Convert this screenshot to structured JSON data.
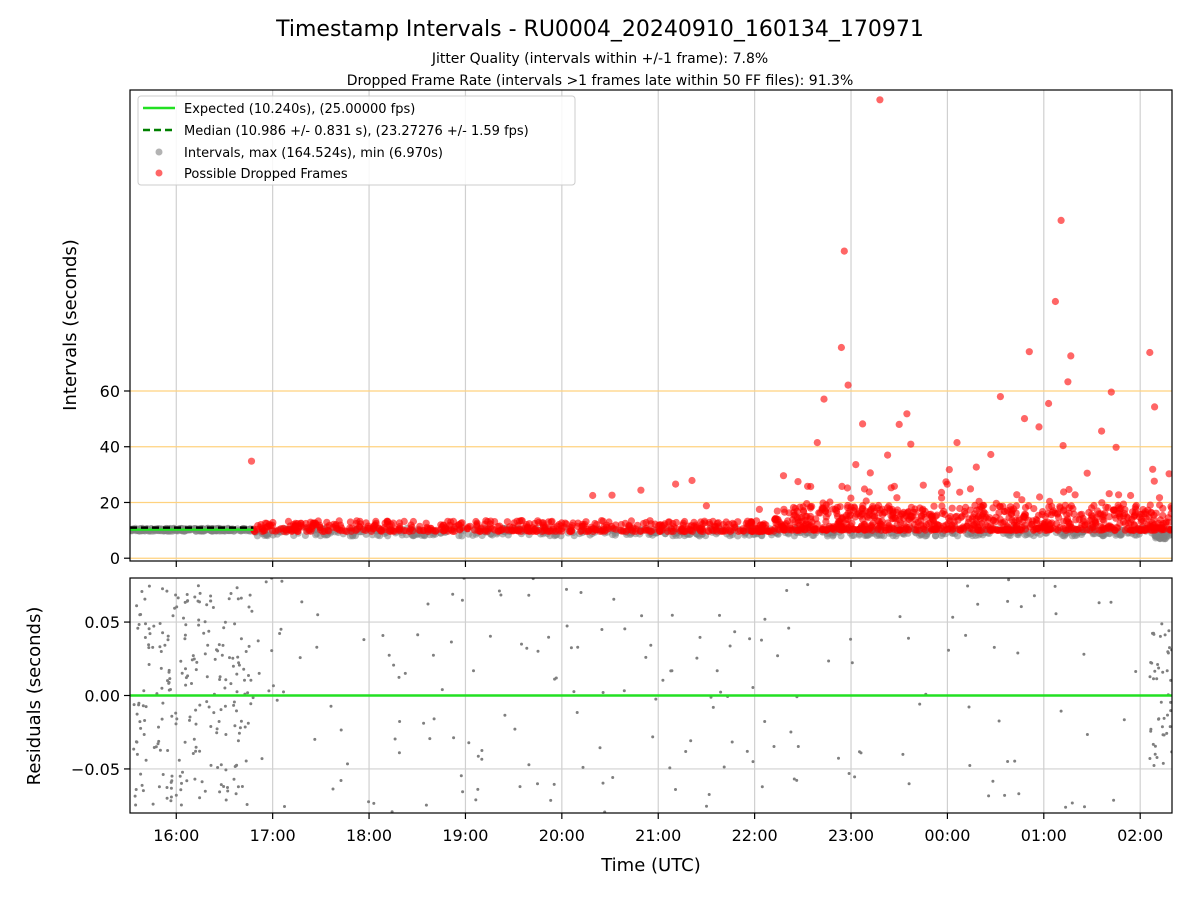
{
  "chart_data": {
    "type": "scatter",
    "title": "Timestamp Intervals - RU0004_20240910_160134_170971",
    "subtitles": [
      "Jitter Quality (intervals within +/-1 frame): 7.8%",
      "Dropped Frame Rate (intervals >1 frames late within 50 FF files): 91.3%"
    ],
    "x_ticks": [
      "16:00",
      "17:00",
      "18:00",
      "19:00",
      "20:00",
      "21:00",
      "22:00",
      "23:00",
      "00:00",
      "01:00",
      "02:00"
    ],
    "xlabel": "Time (UTC)",
    "xlim_hours": [
      15.52,
      26.33
    ],
    "top": {
      "ylabel": "Intervals (seconds)",
      "ylim": [
        -1,
        168
      ],
      "y_ticks": [
        0,
        20,
        40,
        60
      ],
      "threshold_lines": [
        0,
        20,
        40,
        60
      ],
      "threshold_color": "#ffd27f",
      "expected_value": 10.24,
      "median_value": 10.986,
      "legend_position": "upper-left",
      "legend": [
        {
          "label": "Expected (10.240s), (25.00000 fps)",
          "marker": "solid-line",
          "color": "#22e022"
        },
        {
          "label": "Median (10.986 +/- 0.831 s), (23.27276 +/- 1.59 fps)",
          "marker": "dashed-line",
          "color": "#008000"
        },
        {
          "label": "Intervals, max (164.524s), min (6.970s)",
          "marker": "dot",
          "color": "#808080"
        },
        {
          "label": "Possible Dropped Frames",
          "marker": "dot",
          "color": "#ff0000"
        }
      ],
      "dropped_outliers": [
        [
          16.78,
          34.8
        ],
        [
          20.32,
          22.5
        ],
        [
          20.52,
          22.6
        ],
        [
          20.82,
          24.4
        ],
        [
          21.18,
          26.6
        ],
        [
          21.35,
          27.9
        ],
        [
          21.5,
          18.8
        ],
        [
          22.05,
          17.5
        ],
        [
          22.3,
          29.6
        ],
        [
          22.45,
          27.5
        ],
        [
          22.55,
          25.8
        ],
        [
          22.65,
          41.5
        ],
        [
          22.72,
          57.1
        ],
        [
          22.9,
          75.6
        ],
        [
          22.93,
          110.2
        ],
        [
          22.97,
          62.1
        ],
        [
          23.05,
          33.6
        ],
        [
          23.12,
          48.2
        ],
        [
          23.2,
          30.6
        ],
        [
          23.3,
          164.5
        ],
        [
          23.38,
          37.0
        ],
        [
          23.45,
          25.8
        ],
        [
          23.5,
          48.0
        ],
        [
          23.58,
          51.8
        ],
        [
          23.62,
          40.9
        ],
        [
          23.75,
          26.2
        ],
        [
          24.02,
          31.8
        ],
        [
          24.1,
          41.5
        ],
        [
          24.3,
          32.7
        ],
        [
          24.45,
          37.2
        ],
        [
          24.55,
          58.0
        ],
        [
          24.72,
          22.8
        ],
        [
          24.8,
          50.1
        ],
        [
          24.85,
          74.1
        ],
        [
          24.95,
          47.1
        ],
        [
          25.05,
          55.5
        ],
        [
          25.12,
          92.1
        ],
        [
          25.18,
          121.2
        ],
        [
          25.2,
          40.4
        ],
        [
          25.25,
          63.3
        ],
        [
          25.28,
          72.6
        ],
        [
          25.45,
          30.5
        ],
        [
          25.6,
          45.6
        ],
        [
          25.7,
          59.6
        ],
        [
          25.75,
          39.8
        ],
        [
          25.9,
          22.5
        ],
        [
          26.1,
          73.8
        ],
        [
          26.13,
          31.9
        ],
        [
          26.15,
          54.3
        ],
        [
          26.2,
          21.7
        ],
        [
          26.3,
          30.3
        ]
      ],
      "dropped_clusters": [
        {
          "hours": [
            16.8,
            22.2
          ],
          "ymin": 9.6,
          "ymax": 13.5,
          "n": 520
        },
        {
          "hours": [
            22.2,
            26.33
          ],
          "ymin": 10.0,
          "ymax": 19.0,
          "n": 700
        },
        {
          "hours": [
            22.4,
            26.33
          ],
          "ymin": 15.0,
          "ymax": 28.0,
          "n": 90
        }
      ],
      "interval_clusters": [
        {
          "hours": [
            15.52,
            16.8
          ],
          "ymin": 9.7,
          "ymax": 10.7,
          "n": 260
        },
        {
          "hours": [
            16.8,
            26.33
          ],
          "ymin": 8.0,
          "ymax": 10.8,
          "n": 600
        },
        {
          "hours": [
            26.15,
            26.3
          ],
          "ymin": 6.97,
          "ymax": 9.0,
          "n": 30
        }
      ]
    },
    "bottom": {
      "ylabel": "Residuals (seconds)",
      "ylim": [
        -0.08,
        0.08
      ],
      "y_ticks": [
        "0.05",
        "0.00",
        "−0.05"
      ],
      "y_tick_values": [
        0.05,
        0.0,
        -0.05
      ],
      "zero_line_color": "#22e022",
      "residual_clusters": [
        {
          "hours": [
            15.55,
            16.8
          ],
          "ymin": -0.075,
          "ymax": 0.075,
          "n": 230
        },
        {
          "hours": [
            16.8,
            22.3
          ],
          "ymin": -0.08,
          "ymax": 0.08,
          "n": 130
        },
        {
          "hours": [
            22.3,
            26.1
          ],
          "ymin": -0.08,
          "ymax": 0.08,
          "n": 55
        },
        {
          "hours": [
            26.1,
            26.33
          ],
          "ymin": -0.05,
          "ymax": 0.05,
          "n": 45
        }
      ]
    },
    "grid": true,
    "colors": {
      "interval": "#808080",
      "dropped": "#ff0000",
      "expected": "#22e022",
      "median": "#008000",
      "residual": "#7f7f7f"
    }
  }
}
